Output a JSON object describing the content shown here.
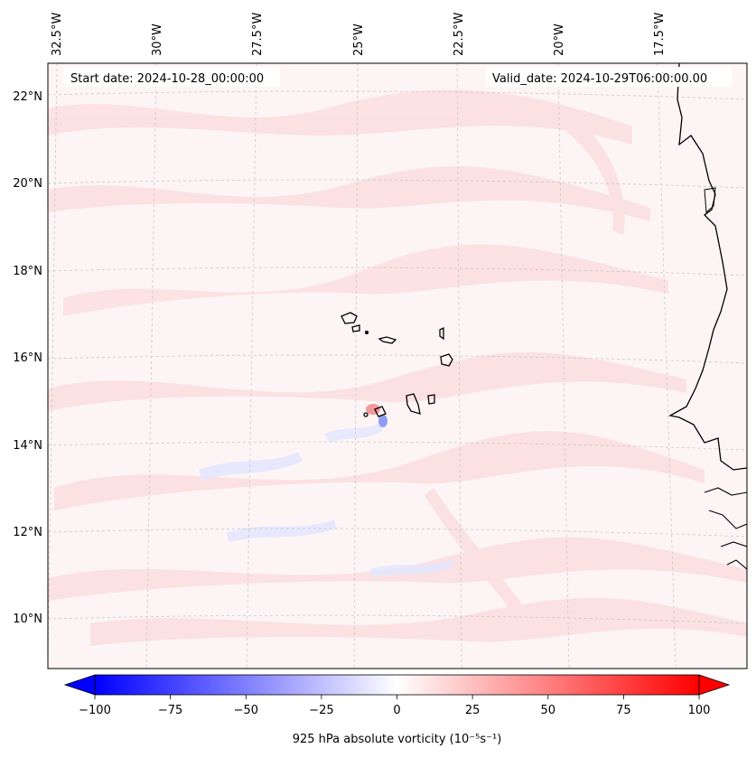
{
  "header": {
    "start_date": "Start date: 2024-10-28_00:00:00",
    "valid_date": "Valid_date: 2024-10-29T06:00:00.00"
  },
  "map": {
    "lon_labels": [
      "32.5°W",
      "30°W",
      "27.5°W",
      "25°W",
      "22.5°W",
      "20°W",
      "17.5°W"
    ],
    "lat_labels": [
      "22°N",
      "20°N",
      "18°N",
      "16°N",
      "14°N",
      "12°N",
      "10°N"
    ],
    "field_palette": {
      "negative": "#0000ff",
      "zero": "#ffffff",
      "positive": "#ff0000"
    },
    "coastline_color": "#000000",
    "gridline_color": "#c8c8c8"
  },
  "colorbar": {
    "label": "925 hPa absolute vorticity (10⁻⁵s⁻¹)",
    "ticks": [
      "−100",
      "−75",
      "−50",
      "−25",
      "0",
      "25",
      "50",
      "75",
      "100"
    ],
    "range": [
      -100,
      100
    ],
    "extend": "both"
  }
}
